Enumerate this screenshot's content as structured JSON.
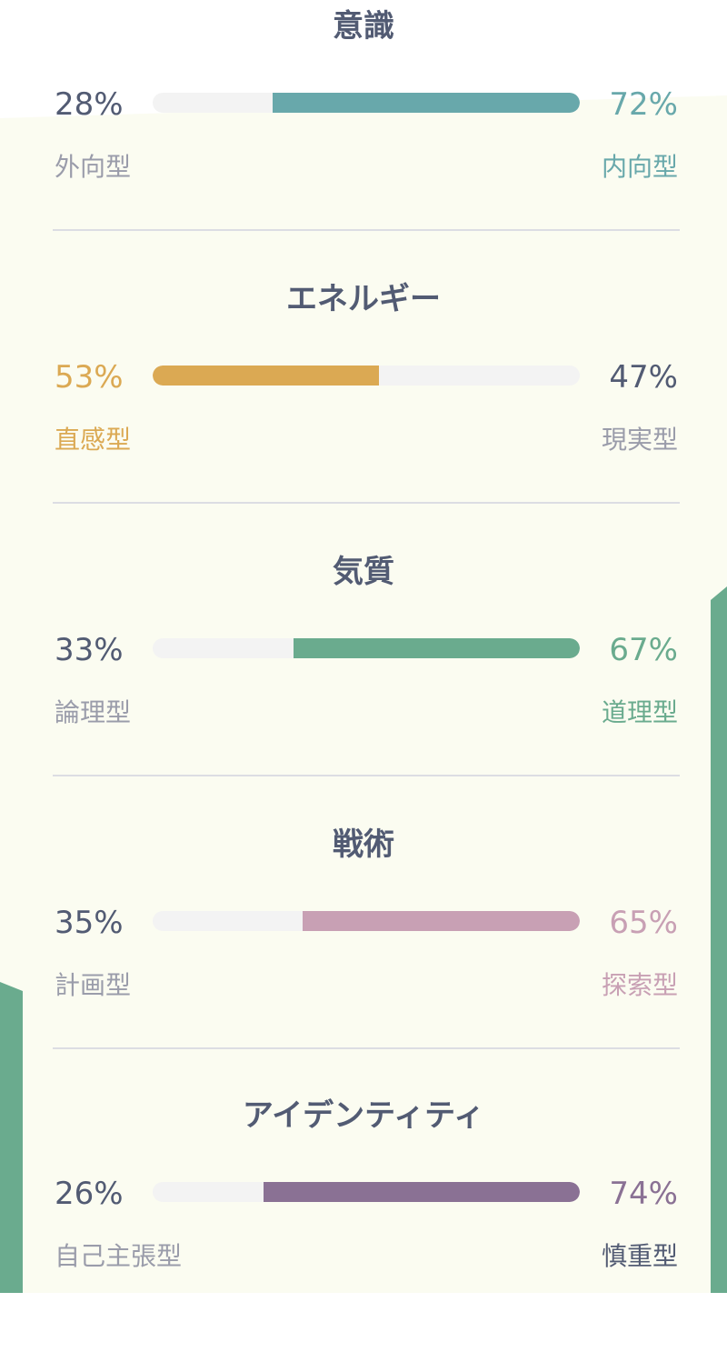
{
  "colors": {
    "cream": "#fbfcf1",
    "green_decor": "#6aab8e",
    "text_dark": "#525b73",
    "text_muted": "#9a9caa",
    "track": "#f3f3f3"
  },
  "traits": [
    {
      "title": "意識",
      "left": {
        "percent": "28%",
        "label": "外向型"
      },
      "right": {
        "percent": "72%",
        "label": "内向型"
      },
      "dominant": "right",
      "dominant_value": 0.72,
      "color": "#68a8ab"
    },
    {
      "title": "エネルギー",
      "left": {
        "percent": "53%",
        "label": "直感型"
      },
      "right": {
        "percent": "47%",
        "label": "現実型"
      },
      "dominant": "left",
      "dominant_value": 0.53,
      "color": "#dba953"
    },
    {
      "title": "気質",
      "left": {
        "percent": "33%",
        "label": "論理型"
      },
      "right": {
        "percent": "67%",
        "label": "道理型"
      },
      "dominant": "right",
      "dominant_value": 0.67,
      "color": "#6aab8e"
    },
    {
      "title": "戦術",
      "left": {
        "percent": "35%",
        "label": "計画型"
      },
      "right": {
        "percent": "65%",
        "label": "探索型"
      },
      "dominant": "right",
      "dominant_value": 0.65,
      "color": "#c8a0b4"
    },
    {
      "title": "アイデンティティ",
      "left": {
        "percent": "26%",
        "label": "自己主張型"
      },
      "right": {
        "percent": "74%",
        "label": "慎重型"
      },
      "dominant": "right",
      "dominant_value": 0.74,
      "color": "#8a7194"
    }
  ]
}
